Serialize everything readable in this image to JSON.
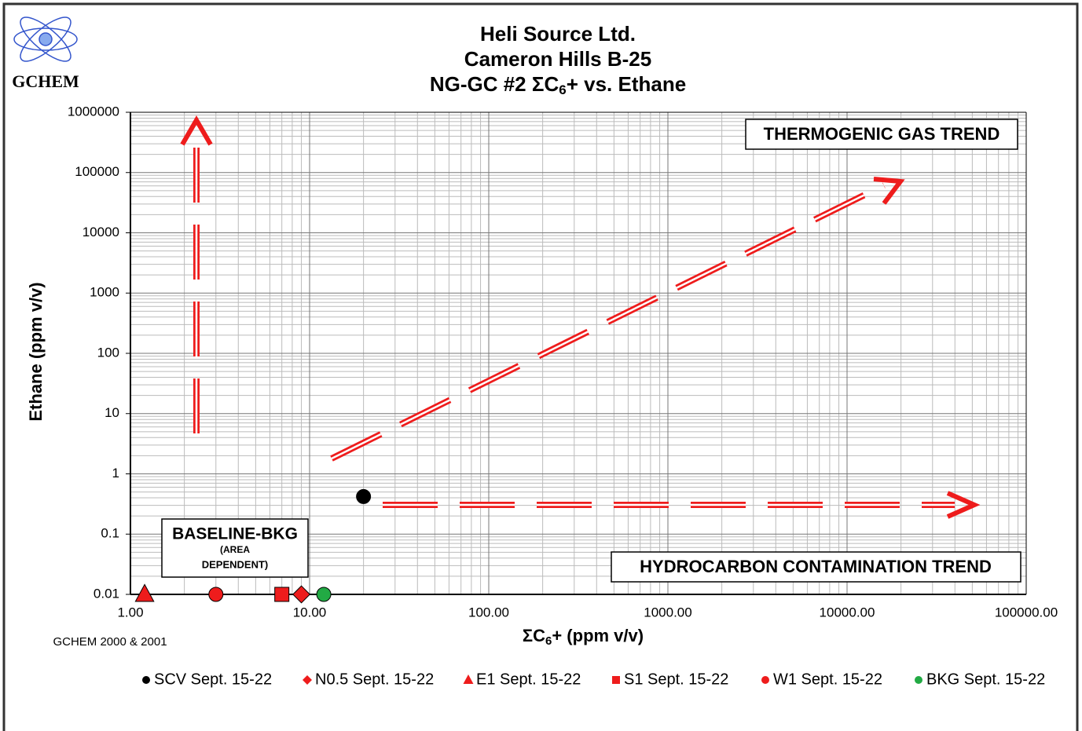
{
  "chart_data": {
    "type": "scatter",
    "logo": "GCHEM",
    "title_lines": [
      "Heli Source Ltd.",
      "Cameron Hills B-25"
    ],
    "title_parts": [
      "NG-GC #2 ΣC",
      "6",
      "+ vs. Ethane"
    ],
    "xlabel_parts": [
      "ΣC",
      "6",
      "+ (ppm v/v)"
    ],
    "ylabel": "Ethane (ppm v/v)",
    "footnote": "GCHEM  2000 & 2001",
    "xscale": "log",
    "yscale": "log",
    "xlim": [
      1,
      100000
    ],
    "ylim": [
      0.01,
      1000000
    ],
    "xticks": [
      {
        "value": 1,
        "label": "1.00"
      },
      {
        "value": 10,
        "label": "10.00"
      },
      {
        "value": 100,
        "label": "100.00"
      },
      {
        "value": 1000,
        "label": "1000.00"
      },
      {
        "value": 10000,
        "label": "10000.00"
      },
      {
        "value": 100000,
        "label": "100000.00"
      }
    ],
    "yticks": [
      0.01,
      0.1,
      1,
      10,
      100,
      1000,
      10000,
      100000,
      1000000
    ],
    "grid": true,
    "annotations": [
      "THERMOGENIC GAS  TREND",
      "HYDROCARBON CONTAMINATION  TREND",
      "BASELINE-BKG",
      "(AREA",
      "DEPENDENT)"
    ],
    "legend": "bottom",
    "series": [
      {
        "name": "SCV Sept. 15-22",
        "color": "#000000",
        "marker": "circle",
        "x": [
          20
        ],
        "values": [
          0.42
        ]
      },
      {
        "name": "N0.5 Sept. 15-22",
        "color": "#ee1c1c",
        "marker": "diamond",
        "x": [
          9
        ],
        "values": [
          0.01
        ]
      },
      {
        "name": "E1 Sept. 15-22",
        "color": "#ee1c1c",
        "marker": "triangle",
        "x": [
          1.2
        ],
        "values": [
          0.01
        ]
      },
      {
        "name": "S1 Sept. 15-22",
        "color": "#ee1c1c",
        "marker": "square",
        "x": [
          7
        ],
        "values": [
          0.01
        ]
      },
      {
        "name": "W1 Sept. 15-22",
        "color": "#ee1c1c",
        "marker": "circle",
        "x": [
          3
        ],
        "values": [
          0.01
        ]
      },
      {
        "name": "BKG Sept. 15-22",
        "color": "#22aa44",
        "marker": "circle",
        "x": [
          12
        ],
        "values": [
          0.01
        ]
      }
    ]
  }
}
